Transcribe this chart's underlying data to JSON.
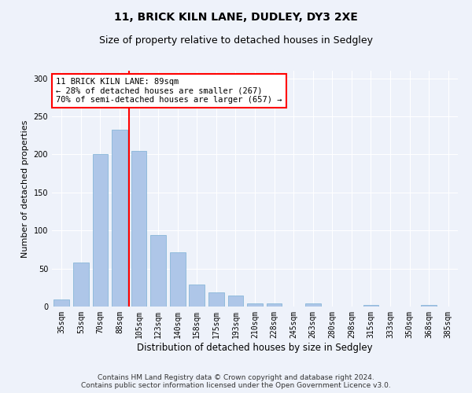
{
  "title1": "11, BRICK KILN LANE, DUDLEY, DY3 2XE",
  "title2": "Size of property relative to detached houses in Sedgley",
  "xlabel": "Distribution of detached houses by size in Sedgley",
  "ylabel": "Number of detached properties",
  "categories": [
    "35sqm",
    "53sqm",
    "70sqm",
    "88sqm",
    "105sqm",
    "123sqm",
    "140sqm",
    "158sqm",
    "175sqm",
    "193sqm",
    "210sqm",
    "228sqm",
    "245sqm",
    "263sqm",
    "280sqm",
    "298sqm",
    "315sqm",
    "333sqm",
    "350sqm",
    "368sqm",
    "385sqm"
  ],
  "values": [
    9,
    58,
    200,
    233,
    205,
    94,
    71,
    29,
    19,
    14,
    4,
    4,
    0,
    4,
    0,
    0,
    2,
    0,
    0,
    2,
    0
  ],
  "bar_color": "#aec6e8",
  "bar_edge_color": "#7bafd4",
  "bar_width": 0.8,
  "property_line_x": 3.5,
  "annotation_text": "11 BRICK KILN LANE: 89sqm\n← 28% of detached houses are smaller (267)\n70% of semi-detached houses are larger (657) →",
  "annotation_box_color": "white",
  "annotation_box_edge_color": "red",
  "red_line_color": "red",
  "ylim": [
    0,
    310
  ],
  "yticks": [
    0,
    50,
    100,
    150,
    200,
    250,
    300
  ],
  "footer1": "Contains HM Land Registry data © Crown copyright and database right 2024.",
  "footer2": "Contains public sector information licensed under the Open Government Licence v3.0.",
  "background_color": "#eef2fa",
  "grid_color": "white",
  "title1_fontsize": 10,
  "title2_fontsize": 9,
  "xlabel_fontsize": 8.5,
  "ylabel_fontsize": 8,
  "tick_fontsize": 7,
  "footer_fontsize": 6.5,
  "annotation_fontsize": 7.5
}
